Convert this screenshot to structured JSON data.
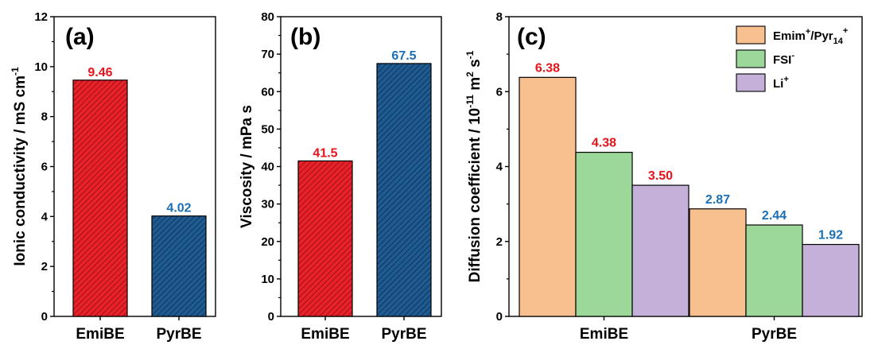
{
  "figure": {
    "colors": {
      "EmiBE_fill": "#e8212a",
      "EmiBE_stroke": "#8a0e0e",
      "PyrBE_fill": "#1f5b93",
      "PyrBE_stroke": "#0d2a48",
      "cation": "#f9c08f",
      "anion": "#9dd89b",
      "lithium": "#c4b0d8",
      "label_red": "#e8131b",
      "label_blue": "#1b6fb5"
    }
  },
  "chart_data": [
    {
      "type": "bar",
      "panel": "(a)",
      "categories": [
        "EmiBE",
        "PyrBE"
      ],
      "values": [
        9.46,
        4.02
      ],
      "value_labels": [
        "9.46",
        "4.02"
      ],
      "ylabel_main": "Ionic conductivity / mS cm",
      "ylabel_sup": "-1",
      "ylim": [
        0,
        12
      ],
      "yticks": [
        0,
        2,
        4,
        6,
        8,
        10,
        12
      ],
      "pattern": "hatched"
    },
    {
      "type": "bar",
      "panel": "(b)",
      "categories": [
        "EmiBE",
        "PyrBE"
      ],
      "values": [
        41.5,
        67.5
      ],
      "value_labels": [
        "41.5",
        "67.5"
      ],
      "ylabel_main": "Viscosity / mPa s",
      "ylim": [
        0,
        80
      ],
      "yticks": [
        0,
        10,
        20,
        30,
        40,
        50,
        60,
        70,
        80
      ],
      "pattern": "hatched"
    },
    {
      "type": "bar",
      "panel": "(c)",
      "categories": [
        "EmiBE",
        "PyrBE"
      ],
      "series": [
        {
          "name": "Emim+/Pyr14+",
          "values": [
            6.38,
            2.87
          ],
          "value_labels": [
            "6.38",
            "2.87"
          ]
        },
        {
          "name": "FSI-",
          "values": [
            4.38,
            2.44
          ],
          "value_labels": [
            "4.38",
            "2.44"
          ]
        },
        {
          "name": "Li+",
          "values": [
            3.5,
            1.92
          ],
          "value_labels": [
            "3.50",
            "1.92"
          ]
        }
      ],
      "ylabel_main": "Diffusion coefficient / 10",
      "ylabel_sup1": "-11",
      "ylabel_mid": " m",
      "ylabel_sup2": "2",
      "ylabel_mid2": " s",
      "ylabel_sup3": "-1",
      "ylim": [
        0,
        8
      ],
      "yticks": [
        0,
        2,
        4,
        6,
        8
      ],
      "legend_position": "top-right",
      "legend": [
        {
          "base": "Emim",
          "sup1": "+",
          "mid": "/Pyr",
          "sub": "14",
          "sup2": "+"
        },
        {
          "base": "FSI",
          "sup1": "-"
        },
        {
          "base": "Li",
          "sup1": "+"
        }
      ]
    }
  ]
}
